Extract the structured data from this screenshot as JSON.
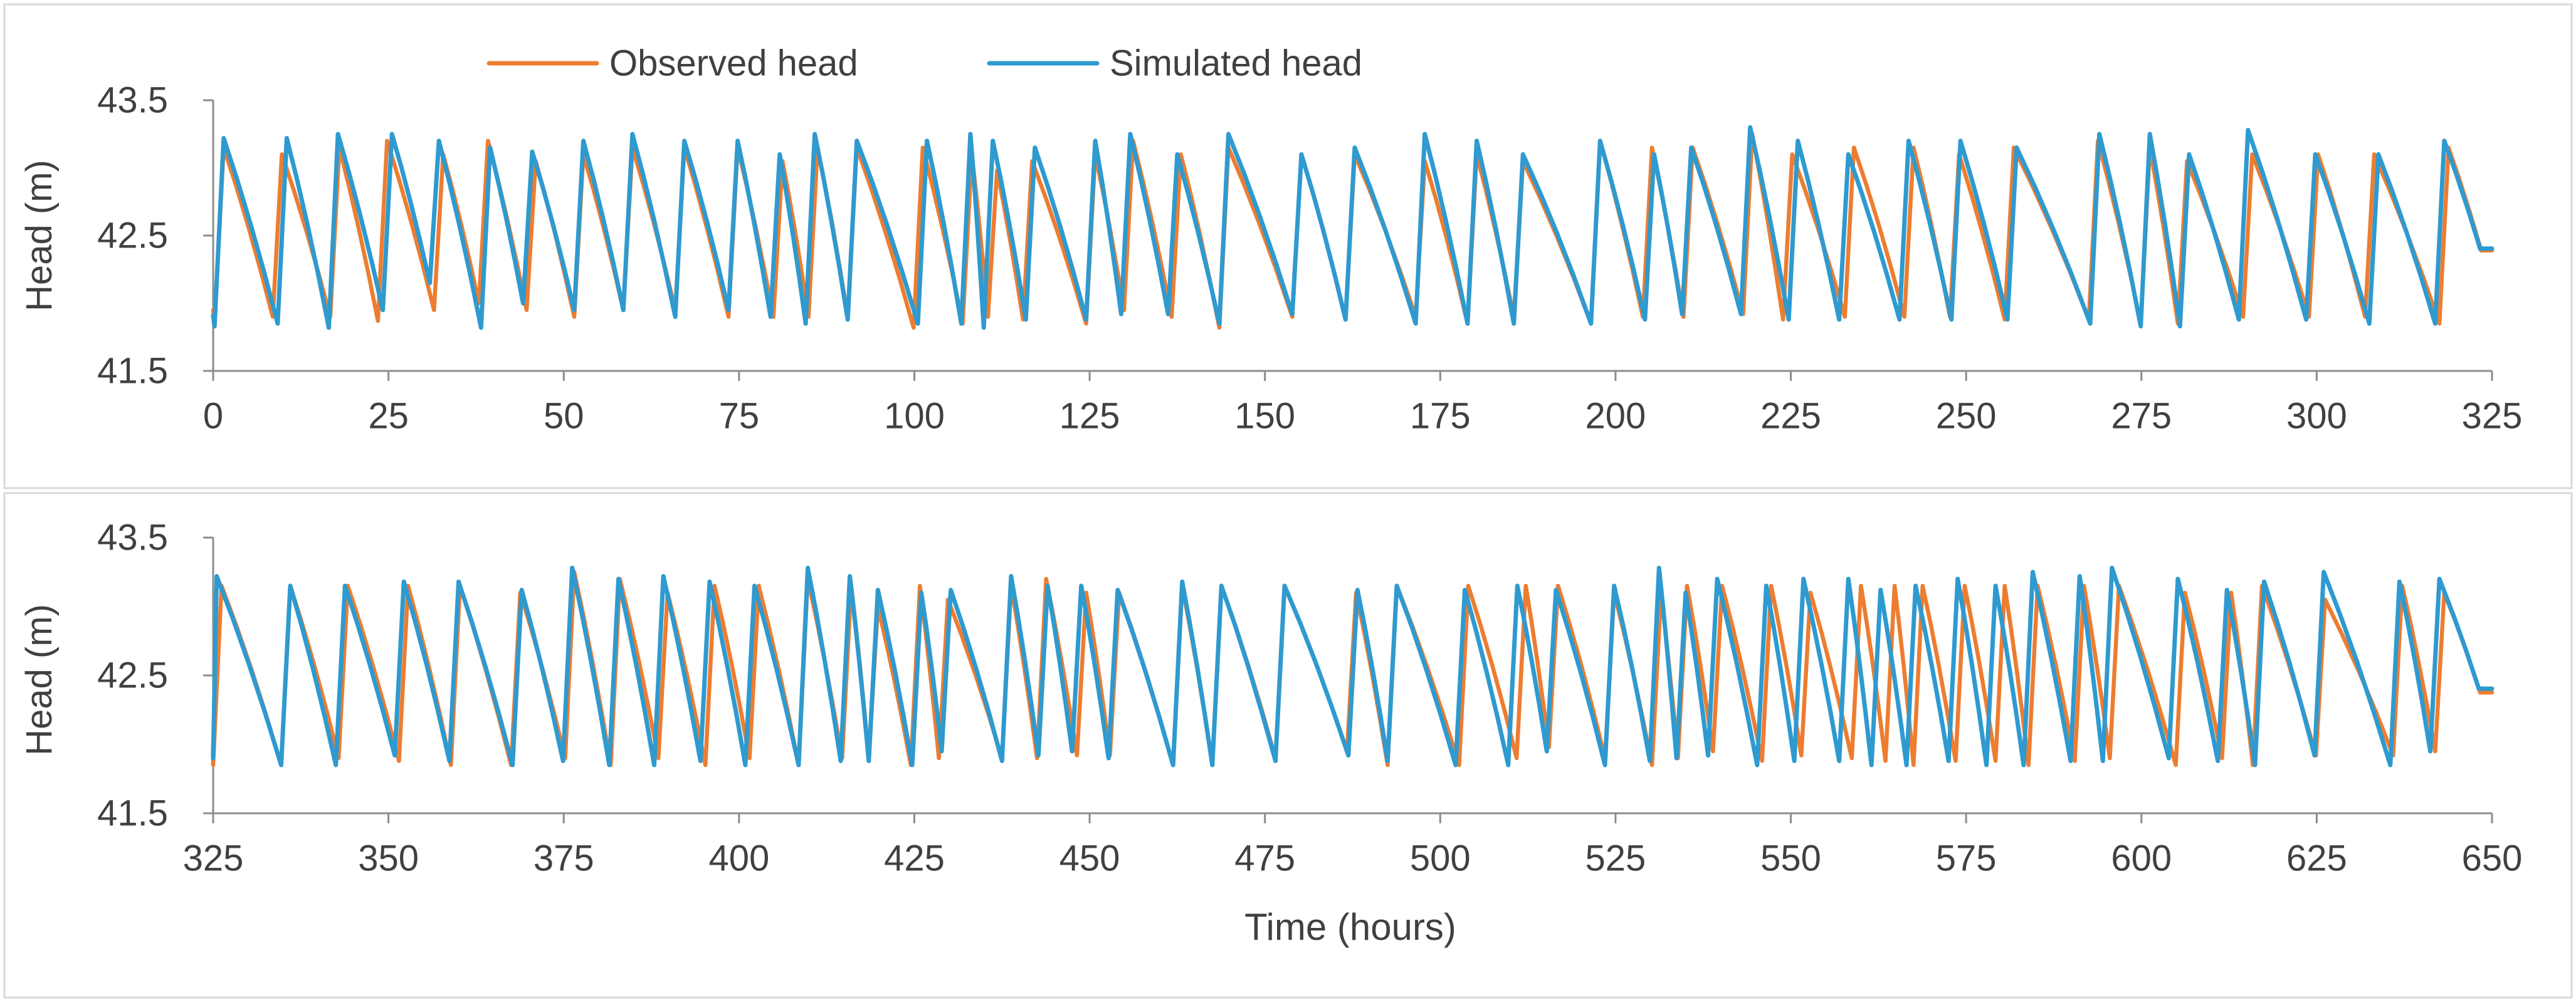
{
  "legend": {
    "placement": "top-center",
    "items": [
      {
        "label": "Observed head",
        "color": "#ED7D31"
      },
      {
        "label": "Simulated head",
        "color": "#2E9AD0"
      }
    ]
  },
  "shared_xlabel": "Time (hours)",
  "chart_data": [
    {
      "type": "line",
      "title": "",
      "xlabel": "",
      "ylabel": "Head (m)",
      "xlim": [
        0,
        325
      ],
      "ylim": [
        41.5,
        43.5
      ],
      "xticks": [
        "0",
        "25",
        "50",
        "75",
        "100",
        "125",
        "150",
        "175",
        "200",
        "225",
        "250",
        "275",
        "300",
        "325"
      ],
      "yticks": [
        "41.5",
        "42.5",
        "43.5"
      ],
      "grid": false,
      "series": [
        {
          "name": "Observed head",
          "color": "#ED7D31",
          "cycle_peaks_x": [
            1.5,
            9.8,
            18.0,
            24.8,
            32.8,
            39.2,
            46.0,
            52.8,
            59.8,
            67.2,
            74.8,
            81.2,
            86.2,
            91.8,
            101.2,
            108.2,
            111.8,
            116.8,
            125.8,
            131.2,
            138.0,
            144.8,
            155.2,
            162.8,
            172.8,
            180.2,
            186.8,
            197.8,
            205.2,
            211.0,
            219.5,
            225.2,
            234.0,
            242.5,
            249.0,
            256.8,
            268.8,
            276.2,
            281.5,
            290.8,
            300.2,
            308.2,
            318.8
          ],
          "cycle_peaks_y": [
            43.15,
            43.1,
            43.15,
            43.2,
            43.1,
            43.2,
            43.05,
            43.1,
            43.15,
            43.15,
            43.15,
            43.05,
            43.15,
            43.15,
            43.15,
            43.1,
            42.98,
            43.05,
            43.1,
            43.2,
            43.1,
            43.15,
            43.1,
            43.1,
            43.05,
            43.1,
            43.05,
            43.2,
            43.15,
            43.15,
            43.25,
            43.1,
            43.15,
            43.15,
            43.1,
            43.15,
            43.2,
            43.15,
            43.05,
            43.1,
            43.1,
            43.1,
            43.15
          ],
          "cycle_troughs_y": [
            41.87,
            41.9,
            41.9,
            41.87,
            41.95,
            42.0,
            41.95,
            41.9,
            41.95,
            41.95,
            41.9,
            41.9,
            41.9,
            41.9,
            41.82,
            41.85,
            41.9,
            41.88,
            41.85,
            41.95,
            41.9,
            41.82,
            41.9,
            41.88,
            41.9,
            41.85,
            41.9,
            41.85,
            41.9,
            41.9,
            41.92,
            41.88,
            41.9,
            41.9,
            41.9,
            41.88,
            41.88,
            41.85,
            41.85,
            41.9,
            41.9,
            41.9,
            41.85
          ]
        },
        {
          "name": "Simulated head",
          "color": "#2E9AD0",
          "cycle_peaks_x": [
            1.5,
            10.5,
            17.8,
            25.5,
            32.2,
            39.5,
            45.5,
            52.8,
            59.8,
            67.2,
            74.8,
            80.8,
            85.8,
            91.8,
            101.8,
            108.0,
            111.2,
            117.2,
            125.8,
            130.8,
            137.5,
            144.8,
            155.2,
            162.8,
            172.8,
            180.2,
            186.8,
            197.8,
            205.5,
            210.8,
            219.2,
            226.0,
            233.2,
            241.8,
            249.2,
            257.2,
            269.0,
            276.2,
            281.8,
            290.2,
            299.8,
            308.8,
            318.2
          ],
          "cycle_peaks_y": [
            43.22,
            43.22,
            43.25,
            43.25,
            43.2,
            43.15,
            43.12,
            43.2,
            43.25,
            43.2,
            43.2,
            43.1,
            43.25,
            43.2,
            43.2,
            43.25,
            43.2,
            43.15,
            43.2,
            43.25,
            43.1,
            43.25,
            43.1,
            43.15,
            43.25,
            43.2,
            43.1,
            43.2,
            43.1,
            43.15,
            43.3,
            43.2,
            43.1,
            43.2,
            43.2,
            43.15,
            43.25,
            43.25,
            43.1,
            43.28,
            43.1,
            43.1,
            43.2
          ],
          "cycle_troughs_y": [
            41.83,
            41.85,
            41.82,
            41.95,
            42.15,
            41.82,
            42.0,
            41.95,
            41.95,
            41.9,
            41.95,
            41.9,
            41.85,
            41.88,
            41.85,
            41.85,
            41.82,
            41.88,
            41.88,
            41.92,
            41.92,
            41.85,
            41.92,
            41.88,
            41.85,
            41.85,
            41.85,
            41.85,
            41.88,
            41.92,
            41.92,
            41.88,
            41.88,
            41.88,
            41.88,
            41.88,
            41.85,
            41.83,
            41.83,
            41.88,
            41.88,
            41.85,
            41.85
          ]
        }
      ]
    },
    {
      "type": "line",
      "title": "",
      "xlabel": "Time (hours)",
      "ylabel": "Head (m)",
      "xlim": [
        325,
        650
      ],
      "ylim": [
        41.5,
        43.5
      ],
      "xticks": [
        "325",
        "350",
        "375",
        "400",
        "425",
        "450",
        "475",
        "500",
        "525",
        "550",
        "575",
        "600",
        "625",
        "650"
      ],
      "yticks": [
        "41.5",
        "42.5",
        "43.5"
      ],
      "grid": false,
      "series": [
        {
          "name": "Observed head",
          "color": "#ED7D31",
          "cycle_peaks_x": [
            326.2,
            336.0,
            344.2,
            352.8,
            360.2,
            368.8,
            376.5,
            383.0,
            389.8,
            396.5,
            402.8,
            409.8,
            416.0,
            419.8,
            425.8,
            429.8,
            438.8,
            443.8,
            449.5,
            454.2,
            463.2,
            468.8,
            477.8,
            488.0,
            493.8,
            504.0,
            512.2,
            516.8,
            524.8,
            531.5,
            535.2,
            540.2,
            547.2,
            552.8,
            560.0,
            564.8,
            568.8,
            574.8,
            580.5,
            585.2,
            591.8,
            596.8,
            606.2,
            612.8,
            617.2,
            626.2,
            637.2,
            643.2
          ],
          "cycle_peaks_y": [
            43.15,
            43.15,
            43.15,
            43.15,
            43.15,
            43.1,
            43.25,
            43.2,
            43.1,
            43.15,
            43.15,
            43.2,
            43.15,
            43.0,
            43.15,
            43.05,
            43.15,
            43.2,
            43.1,
            43.1,
            43.15,
            43.15,
            43.15,
            43.1,
            43.15,
            43.15,
            43.15,
            43.15,
            43.1,
            43.1,
            43.15,
            43.15,
            43.15,
            43.1,
            43.15,
            43.15,
            43.15,
            43.15,
            43.15,
            43.15,
            43.15,
            43.15,
            43.1,
            43.1,
            43.15,
            43.05,
            43.15,
            43.1
          ],
          "cycle_troughs_y": [
            41.85,
            41.85,
            41.9,
            41.88,
            41.85,
            41.85,
            41.9,
            41.85,
            41.9,
            41.85,
            41.9,
            41.85,
            41.9,
            41.9,
            41.85,
            41.9,
            41.9,
            41.9,
            41.92,
            41.92,
            41.85,
            41.85,
            41.9,
            41.95,
            41.85,
            41.85,
            41.9,
            41.98,
            41.9,
            41.85,
            41.9,
            41.95,
            41.88,
            41.92,
            41.9,
            41.88,
            41.85,
            41.88,
            41.88,
            41.85,
            41.88,
            41.9,
            41.85,
            41.9,
            41.85,
            41.92,
            41.92,
            41.95
          ]
        },
        {
          "name": "Simulated head",
          "color": "#2E9AD0",
          "cycle_peaks_x": [
            325.5,
            336.0,
            343.8,
            352.2,
            360.0,
            369.0,
            376.2,
            382.8,
            389.2,
            395.8,
            402.2,
            409.8,
            415.8,
            419.8,
            426.0,
            430.2,
            438.8,
            444.0,
            448.8,
            454.0,
            463.2,
            468.8,
            477.8,
            488.2,
            493.8,
            503.5,
            511.0,
            516.5,
            524.8,
            531.2,
            535.0,
            539.5,
            546.5,
            551.8,
            558.2,
            562.8,
            567.8,
            573.8,
            579.2,
            584.5,
            591.2,
            595.8,
            605.2,
            612.2,
            617.5,
            626.0,
            636.8,
            642.5
          ],
          "cycle_peaks_y": [
            43.22,
            43.15,
            43.15,
            43.18,
            43.18,
            43.12,
            43.28,
            43.2,
            43.22,
            43.18,
            43.15,
            43.28,
            43.22,
            43.12,
            43.1,
            43.12,
            43.22,
            43.15,
            43.15,
            43.12,
            43.18,
            43.15,
            43.15,
            43.12,
            43.15,
            43.12,
            43.15,
            43.12,
            43.15,
            43.28,
            43.1,
            43.2,
            43.15,
            43.2,
            43.2,
            43.12,
            43.15,
            43.2,
            43.15,
            43.25,
            43.22,
            43.28,
            43.2,
            43.12,
            43.18,
            43.25,
            43.18,
            43.2
          ],
          "cycle_troughs_y": [
            41.9,
            41.85,
            41.85,
            41.92,
            41.88,
            41.85,
            41.88,
            41.85,
            41.85,
            41.88,
            41.85,
            41.85,
            41.88,
            41.88,
            41.85,
            41.95,
            41.88,
            41.92,
            41.95,
            41.9,
            41.85,
            41.85,
            41.88,
            41.92,
            41.88,
            41.85,
            41.85,
            41.95,
            41.85,
            41.88,
            41.9,
            41.92,
            41.85,
            41.88,
            41.88,
            41.85,
            41.85,
            41.88,
            41.85,
            41.85,
            41.88,
            41.88,
            41.9,
            41.88,
            41.85,
            41.92,
            41.85,
            41.95
          ]
        }
      ]
    }
  ]
}
